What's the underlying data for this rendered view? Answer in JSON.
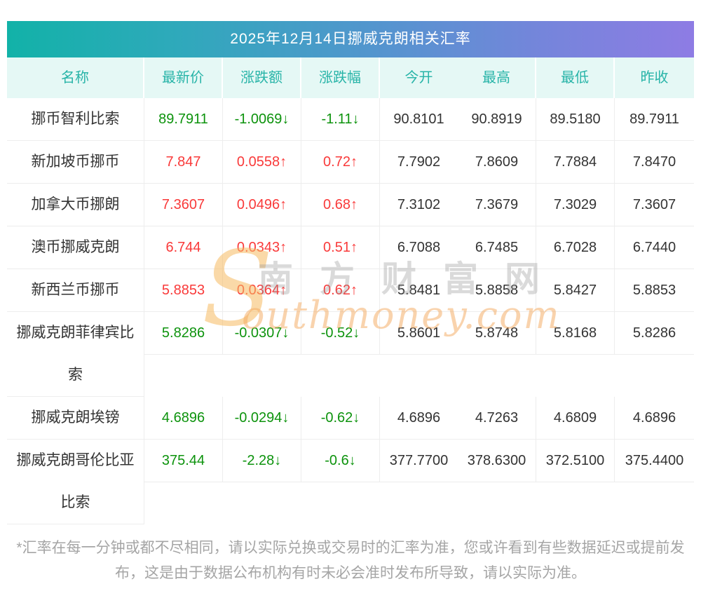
{
  "title": "2025年12月14日挪威克朗相关汇率",
  "chart_data": {
    "type": "table",
    "title": "2025年12月14日挪威克朗相关汇率",
    "columns": [
      "名称",
      "最新价",
      "涨跌额",
      "涨跌幅",
      "今开",
      "最高",
      "最低",
      "昨收"
    ],
    "rows": [
      {
        "name": "挪币智利比索",
        "latest": "89.7911",
        "change": "-1.0069↓",
        "pct": "-1.11↓",
        "open": "90.8101",
        "high": "90.8919",
        "low": "89.5180",
        "prev": "89.7911",
        "trend": "down"
      },
      {
        "name": "新加坡币挪币",
        "latest": "7.847",
        "change": "0.0558↑",
        "pct": "0.72↑",
        "open": "7.7902",
        "high": "7.8609",
        "low": "7.7884",
        "prev": "7.8470",
        "trend": "up"
      },
      {
        "name": "加拿大币挪朗",
        "latest": "7.3607",
        "change": "0.0496↑",
        "pct": "0.68↑",
        "open": "7.3102",
        "high": "7.3679",
        "low": "7.3029",
        "prev": "7.3607",
        "trend": "up"
      },
      {
        "name": "澳币挪威克朗",
        "latest": "6.744",
        "change": "0.0343↑",
        "pct": "0.51↑",
        "open": "6.7088",
        "high": "6.7485",
        "low": "6.7028",
        "prev": "6.7440",
        "trend": "up"
      },
      {
        "name": "新西兰币挪币",
        "latest": "5.8853",
        "change": "0.0364↑",
        "pct": "0.62↑",
        "open": "5.8481",
        "high": "5.8858",
        "low": "5.8427",
        "prev": "5.8853",
        "trend": "up"
      },
      {
        "name": "挪威克朗菲律宾比索",
        "latest": "5.8286",
        "change": "-0.0307↓",
        "pct": "-0.52↓",
        "open": "5.8601",
        "high": "5.8748",
        "low": "5.8168",
        "prev": "5.8286",
        "trend": "down"
      },
      {
        "name": "挪威克朗埃镑",
        "latest": "4.6896",
        "change": "-0.0294↓",
        "pct": "-0.62↓",
        "open": "4.6896",
        "high": "4.7263",
        "low": "4.6809",
        "prev": "4.6896",
        "trend": "down"
      },
      {
        "name": "挪威克朗哥伦比亚比索",
        "latest": "375.44",
        "change": "-2.28↓",
        "pct": "-0.6↓",
        "open": "377.7700",
        "high": "378.6300",
        "low": "372.5100",
        "prev": "375.4400",
        "trend": "down"
      }
    ]
  },
  "watermark": {
    "initial": "S",
    "brand_cn": "南方财富网",
    "brand_en_rest": "outhmoney.com"
  },
  "footnote": "*汇率在每一分钟或都不尽相同，请以实际兑换或交易时的汇率为准，您或许看到有些数据延迟或提前发布，这是由于数据公布机构有时未必会准时发布所导致，请以实际为准。",
  "colors": {
    "up_red": "#f93a3a",
    "down_green": "#0d930d",
    "header_text_teal": "#28b4a8",
    "header_bg": "#e5f8f5",
    "gradient_start": "#12b2a8",
    "gradient_end": "#8e7ce4",
    "border_gray": "#ededed",
    "footnote_gray": "#a5a5a5"
  }
}
